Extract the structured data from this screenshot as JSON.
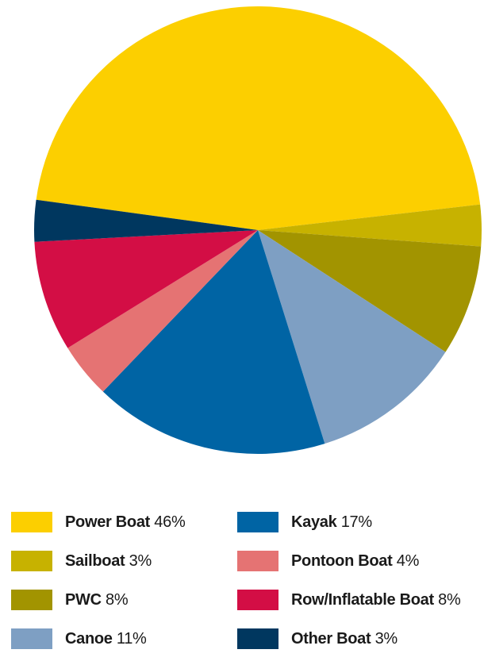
{
  "chart_data": {
    "type": "pie",
    "slices": [
      {
        "label": "Power Boat",
        "value": 46,
        "display": "46%",
        "color": "#fccf00"
      },
      {
        "label": "Sailboat",
        "value": 3,
        "display": "3%",
        "color": "#c7b200"
      },
      {
        "label": "PWC",
        "value": 8,
        "display": "8%",
        "color": "#a29400"
      },
      {
        "label": "Canoe",
        "value": 11,
        "display": "11%",
        "color": "#7e9fc3"
      },
      {
        "label": "Kayak",
        "value": 17,
        "display": "17%",
        "color": "#0064a4"
      },
      {
        "label": "Pontoon Boat",
        "value": 4,
        "display": "4%",
        "color": "#e57373"
      },
      {
        "label": "Row/Inflatable Boat",
        "value": 8,
        "display": "8%",
        "color": "#d30e45"
      },
      {
        "label": "Other Boat",
        "value": 3,
        "display": "3%",
        "color": "#00375f"
      }
    ],
    "legend_placement": "bottom",
    "legend_columns": 2
  }
}
